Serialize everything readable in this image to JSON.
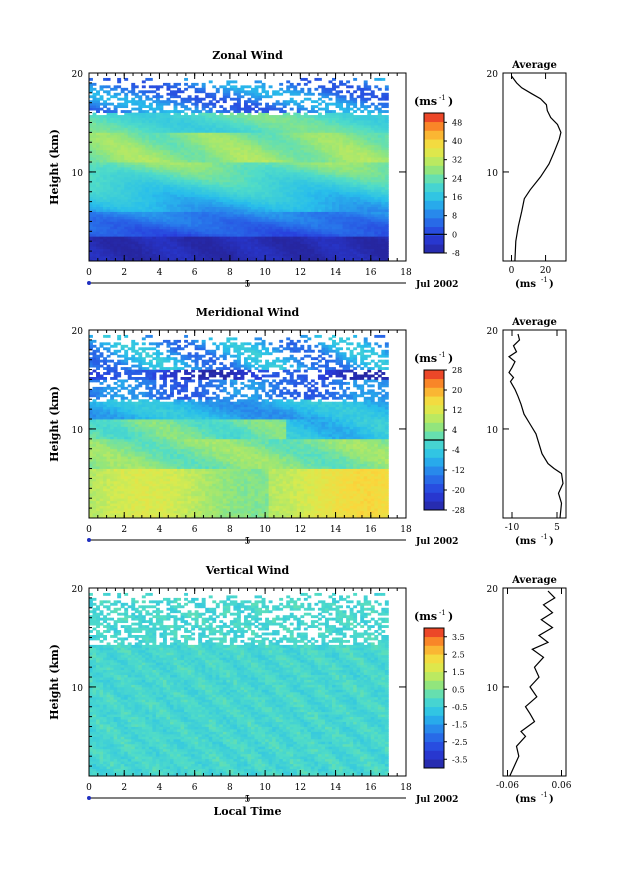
{
  "chart_data": [
    {
      "type": "heatmap",
      "title": "Zonal Wind",
      "ylabel": "Height (km)",
      "unit_label": "(ms",
      "unit_sup": "-1",
      "x_ticks": [
        "0",
        "2",
        "4",
        "6",
        "8",
        "10",
        "12",
        "14",
        "16",
        "18"
      ],
      "y_ticks": [
        "10",
        "20"
      ],
      "xlim": [
        0,
        18
      ],
      "ylim": [
        1,
        20
      ],
      "date_day": "5",
      "date_label": "Jul 2002",
      "colorbar": {
        "min": -8,
        "max": 52,
        "labels": [
          "48",
          "40",
          "32",
          "24",
          "16",
          "8",
          "0",
          "-8"
        ],
        "contour_at": 0
      },
      "data_extent_x": [
        0,
        16.8
      ],
      "white_gaps_above_km": 15.5,
      "average": {
        "title": "Average",
        "x_ticks": [
          "0",
          "20"
        ],
        "xlim": [
          -5,
          32
        ],
        "xlabel": "(ms",
        "xlabel_sup": "-1",
        "y_ticks": [
          "10",
          "20"
        ],
        "profile": [
          [
            2,
            1.0
          ],
          [
            2.5,
            3.0
          ],
          [
            4,
            4.5
          ],
          [
            6,
            6
          ],
          [
            7.5,
            7.3
          ],
          [
            11,
            8.2
          ],
          [
            17,
            9.5
          ],
          [
            22,
            10.8
          ],
          [
            25,
            12
          ],
          [
            28,
            13.3
          ],
          [
            29,
            14.0
          ],
          [
            27,
            14.8
          ],
          [
            23,
            15.5
          ],
          [
            21,
            16.2
          ],
          [
            20.5,
            16.8
          ],
          [
            17,
            17.4
          ],
          [
            12,
            17.9
          ],
          [
            6,
            18.5
          ],
          [
            3,
            19.0
          ],
          [
            0,
            19.7
          ]
        ]
      }
    },
    {
      "type": "heatmap",
      "title": "Meridional Wind",
      "ylabel": "Height (km)",
      "unit_label": "(ms",
      "unit_sup": "-1",
      "x_ticks": [
        "0",
        "2",
        "4",
        "6",
        "8",
        "10",
        "12",
        "14",
        "16",
        "18"
      ],
      "y_ticks": [
        "10",
        "20"
      ],
      "xlim": [
        0,
        18
      ],
      "ylim": [
        1,
        20
      ],
      "date_day": "5",
      "date_label": "Jul 2002",
      "colorbar": {
        "min": -28,
        "max": 28,
        "labels": [
          "28",
          "20",
          "12",
          "4",
          "-4",
          "-12",
          "-20",
          "-28"
        ],
        "contour_at": 0
      },
      "data_extent_x": [
        0,
        16.8
      ],
      "white_gaps_above_km": 12.5,
      "average": {
        "title": "Average",
        "x_ticks": [
          "-10",
          "5"
        ],
        "xlim": [
          -13,
          8
        ],
        "xlabel": "(ms",
        "xlabel_sup": "-1",
        "y_ticks": [
          "10",
          "20"
        ],
        "profile": [
          [
            6,
            1.0
          ],
          [
            6.5,
            2.5
          ],
          [
            5.5,
            3.5
          ],
          [
            7,
            4.5
          ],
          [
            6.5,
            5.5
          ],
          [
            4,
            6.0
          ],
          [
            2,
            6.5
          ],
          [
            0,
            7.5
          ],
          [
            -1,
            8.5
          ],
          [
            -2,
            9.5
          ],
          [
            -4,
            10.5
          ],
          [
            -6,
            11.5
          ],
          [
            -7,
            12.5
          ],
          [
            -8,
            13.3
          ],
          [
            -9,
            14.0
          ],
          [
            -10.5,
            14.8
          ],
          [
            -9.5,
            15.2
          ],
          [
            -11,
            15.7
          ],
          [
            -10,
            16.2
          ],
          [
            -9,
            16.8
          ],
          [
            -11,
            17.3
          ],
          [
            -8.5,
            17.8
          ],
          [
            -9.5,
            18.4
          ],
          [
            -7.5,
            19.0
          ],
          [
            -8,
            19.6
          ]
        ]
      }
    },
    {
      "type": "heatmap",
      "title": "Vertical Wind",
      "ylabel": "Height (km)",
      "xlabel": "Local Time",
      "unit_label": "(ms",
      "unit_sup": "-1",
      "x_ticks": [
        "0",
        "2",
        "4",
        "6",
        "8",
        "10",
        "12",
        "14",
        "16",
        "18"
      ],
      "y_ticks": [
        "10",
        "20"
      ],
      "xlim": [
        0,
        18
      ],
      "ylim": [
        1,
        20
      ],
      "date_day": "5",
      "date_label": "Jul 2002",
      "colorbar": {
        "min": -4,
        "max": 4,
        "labels": [
          "3.5",
          "2.5",
          "1.5",
          "0.5",
          "-0.5",
          "-1.5",
          "-2.5",
          "-3.5"
        ],
        "contour_at": null
      },
      "data_extent_x": [
        0,
        16.8
      ],
      "white_gaps_above_km": 14.0,
      "average": {
        "title": "Average",
        "x_ticks": [
          "-0.06",
          "0.06"
        ],
        "xlim": [
          -0.07,
          0.07
        ],
        "xlabel": "(ms",
        "xlabel_sup": "-1",
        "y_ticks": [
          "10",
          "20"
        ],
        "profile": [
          [
            -0.055,
            1.0
          ],
          [
            -0.045,
            2.0
          ],
          [
            -0.035,
            3.0
          ],
          [
            -0.04,
            4.0
          ],
          [
            -0.02,
            5.0
          ],
          [
            -0.03,
            5.5
          ],
          [
            0.0,
            6.5
          ],
          [
            -0.01,
            7.3
          ],
          [
            -0.02,
            8.0
          ],
          [
            0.005,
            9.0
          ],
          [
            -0.01,
            10.0
          ],
          [
            0.01,
            11.0
          ],
          [
            0.0,
            12.0
          ],
          [
            0.02,
            13.0
          ],
          [
            -0.005,
            13.8
          ],
          [
            0.03,
            14.5
          ],
          [
            0.01,
            15.2
          ],
          [
            0.04,
            16.0
          ],
          [
            0.015,
            16.8
          ],
          [
            0.04,
            17.5
          ],
          [
            0.02,
            18.3
          ],
          [
            0.045,
            19.0
          ],
          [
            0.03,
            19.7
          ]
        ]
      }
    }
  ]
}
